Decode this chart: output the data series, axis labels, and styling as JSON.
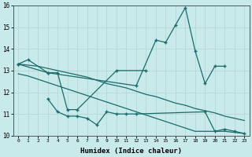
{
  "line1_x": [
    0,
    1,
    3,
    12,
    14,
    15,
    16,
    17,
    18,
    19,
    20,
    21
  ],
  "line1_y": [
    13.3,
    13.5,
    12.9,
    12.3,
    14.4,
    14.3,
    15.1,
    15.9,
    13.9,
    12.4,
    13.2,
    13.2
  ],
  "line2_x": [
    0,
    3,
    4,
    5,
    6,
    10,
    13
  ],
  "line2_y": [
    13.3,
    12.9,
    12.9,
    11.2,
    11.2,
    13.0,
    13.0
  ],
  "line3u_x": [
    0,
    1,
    2,
    3,
    4,
    5,
    6,
    7,
    8,
    9,
    10,
    11,
    12,
    13,
    14,
    15,
    16,
    17,
    18,
    19,
    20,
    21,
    22,
    23
  ],
  "line3u_y": [
    13.3,
    13.25,
    13.2,
    13.1,
    13.0,
    12.9,
    12.8,
    12.7,
    12.55,
    12.4,
    12.3,
    12.2,
    12.05,
    11.9,
    11.8,
    11.65,
    11.5,
    11.4,
    11.25,
    11.15,
    11.05,
    10.9,
    10.8,
    10.7
  ],
  "line3l_x": [
    0,
    1,
    2,
    3,
    4,
    5,
    6,
    7,
    8,
    9,
    10,
    11,
    12,
    13,
    14,
    15,
    16,
    17,
    18,
    19,
    20,
    21,
    22,
    23
  ],
  "line3l_y": [
    12.85,
    12.75,
    12.6,
    12.45,
    12.3,
    12.15,
    12.0,
    11.85,
    11.7,
    11.55,
    11.4,
    11.25,
    11.1,
    10.95,
    10.8,
    10.65,
    10.5,
    10.35,
    10.2,
    10.2,
    10.2,
    10.2,
    10.15,
    10.1
  ],
  "line4_x": [
    3,
    4,
    5,
    6,
    7,
    8,
    9,
    10,
    11,
    12,
    19,
    20,
    21,
    22,
    23
  ],
  "line4_y": [
    11.7,
    11.1,
    10.9,
    10.9,
    10.8,
    10.5,
    11.1,
    11.0,
    11.0,
    11.0,
    11.1,
    10.2,
    10.3,
    10.2,
    10.1
  ],
  "bg_color": "#c8eaea",
  "line_color": "#1a6b6b",
  "grid_color": "#b8d8d8",
  "xlabel": "Humidex (Indice chaleur)",
  "ylim": [
    10,
    16
  ],
  "xlim": [
    -0.5,
    23.5
  ],
  "yticks": [
    10,
    11,
    12,
    13,
    14,
    15,
    16
  ]
}
